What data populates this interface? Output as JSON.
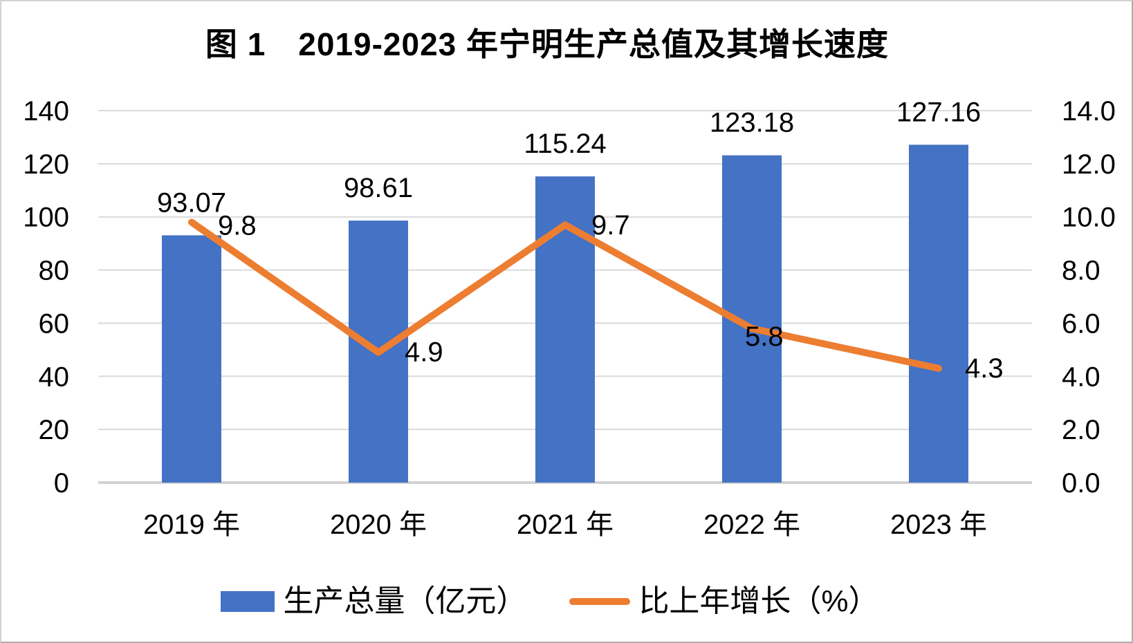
{
  "figure": {
    "title": "图 1　2019-2023 年宁明生产总值及其增长速度"
  },
  "legend": {
    "items": [
      {
        "label": "生产总量（亿元）",
        "marker": "bar-swatch",
        "color": "#4472C4"
      },
      {
        "label": "比上年增长（%）",
        "marker": "line-swatch",
        "color": "#ED7D31"
      }
    ]
  },
  "chart_data": {
    "type": "combo-bar-line",
    "title": "图 1　2019-2023 年宁明生产总值及其增长速度",
    "categories": [
      "2019 年",
      "2020 年",
      "2021 年",
      "2022 年",
      "2023 年"
    ],
    "series": [
      {
        "name": "生产总量（亿元）",
        "type": "bar",
        "axis": "left",
        "color": "#4472C4",
        "values": [
          93.07,
          98.61,
          115.24,
          123.18,
          127.16
        ],
        "labels": [
          "93.07",
          "98.61",
          "115.24",
          "123.18",
          "127.16"
        ]
      },
      {
        "name": "比上年增长（%）",
        "type": "line",
        "axis": "right",
        "color": "#ED7D31",
        "values": [
          9.8,
          4.9,
          9.7,
          5.8,
          4.3
        ],
        "labels": [
          "9.8",
          "4.9",
          "9.7",
          "5.8",
          "4.3"
        ]
      }
    ],
    "left_axis": {
      "min": 0,
      "max": 140,
      "step": 20,
      "ticks": [
        "0",
        "20",
        "40",
        "60",
        "80",
        "100",
        "120",
        "140"
      ]
    },
    "right_axis": {
      "min": 0,
      "max": 14,
      "step": 2,
      "ticks": [
        "0.0",
        "2.0",
        "4.0",
        "6.0",
        "8.0",
        "10.0",
        "12.0",
        "14.0"
      ]
    },
    "grid": true,
    "legend_position": "bottom",
    "colors": {
      "gridline": "#DADADA",
      "axis_line": "#D2D2D2",
      "label": "#000000",
      "background": "#FFFFFF"
    }
  }
}
